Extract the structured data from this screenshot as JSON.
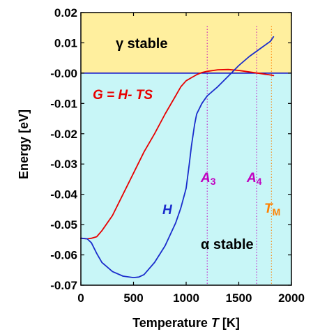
{
  "chart_data": {
    "type": "line",
    "xlabel": "Temperature",
    "xlabel_symbol": "T",
    "xlabel_unit": "[K]",
    "ylabel": "Energy",
    "ylabel_unit": "[eV]",
    "xlim": [
      0,
      2000
    ],
    "ylim": [
      -0.07,
      0.02
    ],
    "xticks": [
      "0",
      "500",
      "1000",
      "1500",
      "2000"
    ],
    "yticks": [
      "0.02",
      "0.01",
      "-0.00",
      "-0.01",
      "-0.02",
      "-0.03",
      "-0.04",
      "-0.05",
      "-0.06",
      "-0.07"
    ],
    "ytick_values": [
      0.02,
      0.01,
      0.0,
      -0.01,
      -0.02,
      -0.03,
      -0.04,
      -0.05,
      -0.06,
      -0.07
    ],
    "regions": [
      {
        "label": "γ stable",
        "y_range": [
          0,
          0.02
        ],
        "color": "#ffef9e"
      },
      {
        "label": "α stable",
        "y_range": [
          -0.07,
          0
        ],
        "color": "#c8f6f7"
      }
    ],
    "series": [
      {
        "name": "G = H- TS",
        "color": "#e80000",
        "x": [
          0,
          60,
          100,
          150,
          200,
          300,
          400,
          500,
          600,
          700,
          800,
          900,
          950,
          1000,
          1050,
          1100,
          1150,
          1200,
          1300,
          1400,
          1500,
          1600,
          1700,
          1800,
          1830
        ],
        "y": [
          -0.0545,
          -0.0547,
          -0.0545,
          -0.054,
          -0.052,
          -0.047,
          -0.04,
          -0.033,
          -0.026,
          -0.02,
          -0.0135,
          -0.0075,
          -0.0045,
          -0.0025,
          -0.0015,
          -0.0005,
          0.0002,
          0.0006,
          0.0011,
          0.0012,
          0.0009,
          0.0004,
          -0.0001,
          -0.0006,
          -0.0008
        ]
      },
      {
        "name": "H",
        "color": "#1a2ccc",
        "x": [
          0,
          60,
          100,
          150,
          200,
          300,
          400,
          500,
          550,
          600,
          700,
          800,
          900,
          950,
          1000,
          1030,
          1050,
          1080,
          1100,
          1150,
          1200,
          1300,
          1400,
          1500,
          1600,
          1700,
          1800,
          1830
        ],
        "y": [
          -0.0545,
          -0.0547,
          -0.056,
          -0.0595,
          -0.0625,
          -0.0655,
          -0.067,
          -0.0675,
          -0.0673,
          -0.0665,
          -0.0625,
          -0.057,
          -0.0495,
          -0.0445,
          -0.038,
          -0.03,
          -0.024,
          -0.017,
          -0.0135,
          -0.01,
          -0.0075,
          -0.0045,
          -0.001,
          0.0025,
          0.0055,
          0.008,
          0.0105,
          0.012
        ]
      }
    ],
    "reference_lines": [
      {
        "label": "A",
        "subscript": "3",
        "x": 1200,
        "color": "#c000c0"
      },
      {
        "label": "A",
        "subscript": "4",
        "x": 1670,
        "color": "#c000c0"
      },
      {
        "label": "T",
        "subscript": "M",
        "x": 1810,
        "color": "#ff8000"
      }
    ]
  }
}
